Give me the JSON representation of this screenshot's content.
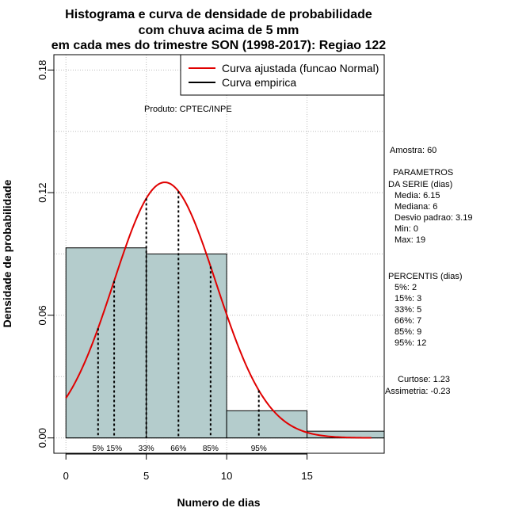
{
  "chart_data": {
    "type": "bar",
    "title_lines": [
      "Histograma e curva de densidade de probabilidade",
      "com chuva acima de 5 mm",
      "em cada mes do trimestre SON (1998-2017): Regiao 122"
    ],
    "xlabel": "Numero de dias",
    "ylabel": "Densidade de probabilidade",
    "xlim": [
      -0.75,
      19.8
    ],
    "ylim": [
      -0.0075,
      0.1875
    ],
    "xticks": [
      0,
      5,
      10,
      15
    ],
    "xtick_labels": [
      "0",
      "5",
      "10",
      "15"
    ],
    "yticks": [
      0.0,
      0.06,
      0.12,
      0.18
    ],
    "ytick_labels": [
      "0.00",
      "0.06",
      "0.12",
      "0.18"
    ],
    "histogram": [
      {
        "x0": 0,
        "x1": 5,
        "density": 0.093
      },
      {
        "x0": 5,
        "x1": 10,
        "density": 0.09
      },
      {
        "x0": 10,
        "x1": 15,
        "density": 0.0133
      },
      {
        "x0": 15,
        "x1": 20,
        "density": 0.0033
      }
    ],
    "fitted_curve": {
      "name": "Curva ajustada (funcao Normal)",
      "distribution": "normal",
      "mean": 6.15,
      "sd": 3.19,
      "x_range": [
        0,
        19
      ]
    },
    "empirical_curve": {
      "name": "Curva empirica"
    },
    "percentile_markers": [
      {
        "label": "5%",
        "x": 2
      },
      {
        "label": "15%",
        "x": 3
      },
      {
        "label": "33%",
        "x": 5
      },
      {
        "label": "66%",
        "x": 7
      },
      {
        "label": "85%",
        "x": 9
      },
      {
        "label": "95%",
        "x": 12
      }
    ],
    "colors": {
      "bars": "#b4cccc",
      "fitted": "#e00000",
      "empirical": "#000000",
      "grid": "#bdbdbd"
    }
  },
  "product_note": "Produto: CPTEC/INPE",
  "stats": {
    "amostra": "Amostra: 60",
    "param_heading_1": "PARAMETROS",
    "param_heading_2": "DA SERIE (dias)",
    "params": [
      "Media: 6.15",
      "Mediana: 6",
      "Desvio padrao: 3.19",
      "Min: 0",
      "Max: 19"
    ],
    "perc_heading": "PERCENTIS (dias)",
    "percentis": [
      "5%: 2",
      "15%: 3",
      "33%: 5",
      "66%: 7",
      "85%: 9",
      "95%: 12"
    ],
    "curtose": "Curtose: 1.23",
    "assimetria": "Assimetria: -0.23"
  }
}
